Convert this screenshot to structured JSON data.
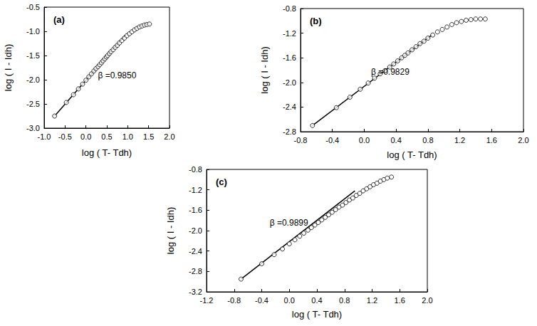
{
  "chart_data": [
    {
      "type": "scatter",
      "title": "(a)",
      "annotations": [
        "β =0.9850"
      ],
      "xlabel": "log ( T- Tdh)",
      "ylabel": "log ( I - Idh)",
      "xlim": [
        -1.0,
        2.0
      ],
      "xticks": [
        {
          "value": -1.0,
          "label": "-1.0"
        },
        -0.5,
        {
          "value": 0.0,
          "label": "0.0"
        },
        0.5,
        {
          "value": 1.0,
          "label": "1.0"
        },
        1.5,
        {
          "value": 2.0,
          "label": "2.0"
        }
      ],
      "ylim": [
        -3.0,
        -0.5
      ],
      "yticks": [
        {
          "value": -3.0,
          "label": "-3.0"
        },
        -2.5,
        {
          "value": -2.0,
          "label": "-2.0"
        },
        -1.5,
        {
          "value": -1.0,
          "label": "-1.0"
        },
        -0.5
      ],
      "grid": false,
      "series": [
        {
          "type": "scatter",
          "marker": "open_circle",
          "color": "#000000",
          "x": [
            -0.75,
            -0.47,
            -0.3,
            -0.18,
            -0.08,
            0.0,
            0.07,
            0.13,
            0.19,
            0.24,
            0.29,
            0.33,
            0.37,
            0.41,
            0.45,
            0.49,
            0.52,
            0.56,
            0.6,
            0.65,
            0.7,
            0.75,
            0.8,
            0.86,
            0.92,
            0.98,
            1.04,
            1.1,
            1.16,
            1.22,
            1.28,
            1.34,
            1.4,
            1.46,
            1.52
          ],
          "values": [
            -2.75,
            -2.47,
            -2.31,
            -2.19,
            -2.09,
            -2.01,
            -1.94,
            -1.88,
            -1.82,
            -1.77,
            -1.73,
            -1.69,
            -1.65,
            -1.61,
            -1.57,
            -1.53,
            -1.5,
            -1.46,
            -1.42,
            -1.38,
            -1.33,
            -1.29,
            -1.24,
            -1.19,
            -1.14,
            -1.09,
            -1.05,
            -1.01,
            -0.97,
            -0.94,
            -0.91,
            -0.89,
            -0.87,
            -0.86,
            -0.85
          ]
        },
        {
          "type": "line",
          "line_style": "solid",
          "color": "#000000",
          "x": [
            -0.75,
            0.95
          ],
          "values": [
            -2.75,
            -1.075
          ]
        }
      ]
    },
    {
      "type": "scatter",
      "title": "(b)",
      "annotations": [
        "β =0.9829"
      ],
      "xlabel": "log ( T- Tdh)",
      "ylabel": "log ( I - Idh)",
      "xlim": [
        -0.8,
        2.0
      ],
      "xticks": [
        -0.8,
        -0.4,
        {
          "value": 0.0,
          "label": "0.0"
        },
        0.4,
        0.8,
        1.2,
        1.6,
        {
          "value": 2.0,
          "label": "2.0"
        }
      ],
      "ylim": [
        -2.8,
        -0.8
      ],
      "yticks": [
        -2.8,
        -2.4,
        {
          "value": -2.0,
          "label": "-2.0"
        },
        -1.6,
        -1.2,
        -0.8
      ],
      "grid": false,
      "series": [
        {
          "type": "scatter",
          "marker": "open_circle",
          "color": "#000000",
          "x": [
            -0.65,
            -0.35,
            -0.18,
            -0.05,
            0.05,
            0.13,
            0.2,
            0.26,
            0.32,
            0.37,
            0.42,
            0.47,
            0.51,
            0.55,
            0.6,
            0.65,
            0.7,
            0.75,
            0.8,
            0.86,
            0.92,
            0.98,
            1.04,
            1.1,
            1.16,
            1.22,
            1.28,
            1.34,
            1.4,
            1.46,
            1.52
          ],
          "values": [
            -2.7,
            -2.41,
            -2.24,
            -2.11,
            -2.01,
            -1.93,
            -1.86,
            -1.81,
            -1.75,
            -1.7,
            -1.65,
            -1.6,
            -1.56,
            -1.52,
            -1.47,
            -1.42,
            -1.37,
            -1.33,
            -1.28,
            -1.23,
            -1.18,
            -1.14,
            -1.1,
            -1.06,
            -1.03,
            -1.01,
            -0.99,
            -0.98,
            -0.97,
            -0.97,
            -0.97
          ]
        },
        {
          "type": "line",
          "line_style": "solid",
          "color": "#000000",
          "x": [
            -0.65,
            0.85
          ],
          "values": [
            -2.7,
            -1.23
          ]
        }
      ]
    },
    {
      "type": "scatter",
      "title": "(c)",
      "annotations": [
        "β =0.9899"
      ],
      "xlabel": "log ( T- Tdh)",
      "ylabel": "log ( I - Idh)",
      "xlim": [
        -1.2,
        2.0
      ],
      "xticks": [
        -1.2,
        -0.8,
        -0.4,
        {
          "value": 0.0,
          "label": "0.0"
        },
        0.4,
        0.8,
        1.2,
        1.6,
        {
          "value": 2.0,
          "label": "2.0"
        }
      ],
      "ylim": [
        -3.2,
        -0.8
      ],
      "yticks": [
        -3.2,
        -2.8,
        -2.4,
        {
          "value": -2.0,
          "label": "-2.0"
        },
        -1.6,
        -1.2,
        -0.8
      ],
      "grid": false,
      "series": [
        {
          "type": "scatter",
          "marker": "open_circle",
          "color": "#000000",
          "x": [
            -0.7,
            -0.4,
            -0.22,
            -0.1,
            0.0,
            0.08,
            0.15,
            0.21,
            0.27,
            0.32,
            0.37,
            0.42,
            0.47,
            0.52,
            0.57,
            0.62,
            0.67,
            0.72,
            0.77,
            0.82,
            0.87,
            0.92,
            0.97,
            1.02,
            1.07,
            1.12,
            1.17,
            1.22,
            1.27,
            1.32,
            1.37,
            1.42,
            1.48
          ],
          "values": [
            -2.95,
            -2.65,
            -2.47,
            -2.36,
            -2.26,
            -2.18,
            -2.11,
            -2.05,
            -1.99,
            -1.94,
            -1.89,
            -1.84,
            -1.79,
            -1.74,
            -1.69,
            -1.64,
            -1.59,
            -1.54,
            -1.5,
            -1.45,
            -1.4,
            -1.36,
            -1.31,
            -1.27,
            -1.22,
            -1.18,
            -1.14,
            -1.1,
            -1.07,
            -1.03,
            -1.0,
            -0.97,
            -0.95
          ]
        },
        {
          "type": "line",
          "line_style": "solid",
          "color": "#000000",
          "x": [
            -0.7,
            0.95
          ],
          "values": [
            -2.95,
            -1.22
          ]
        }
      ]
    }
  ]
}
